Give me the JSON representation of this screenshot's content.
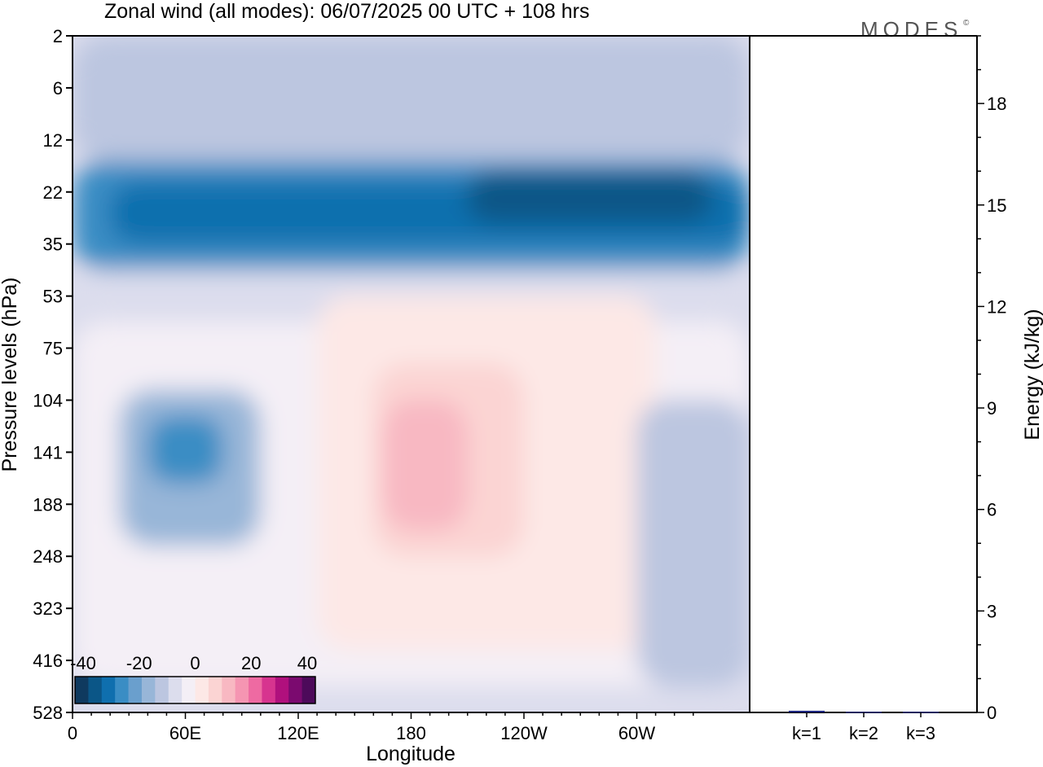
{
  "chart_data": [
    {
      "type": "heatmap",
      "title": "Zonal wind (all modes):  06/07/2025  00 UTC  + 108 hrs",
      "xlabel": "Longitude",
      "ylabel": "Pressure levels (hPa)",
      "x_ticks": [
        "0",
        "60E",
        "120E",
        "180",
        "120W",
        "60W"
      ],
      "y_ticks": [
        "2",
        "6",
        "12",
        "22",
        "35",
        "53",
        "75",
        "104",
        "141",
        "188",
        "248",
        "323",
        "416",
        "528"
      ],
      "colorbar": {
        "tick_labels": [
          "-40",
          "-20",
          "0",
          "20",
          "40"
        ],
        "range": [
          -45,
          45
        ],
        "step": 5,
        "colors": [
          "#0f3a5f",
          "#0b5687",
          "#0f6fae",
          "#3a8dc4",
          "#6a9fcd",
          "#98b6d8",
          "#bcc6e0",
          "#dcdded",
          "#f4eff6",
          "#fde8e6",
          "#fbd4d3",
          "#f8b8c2",
          "#f595b2",
          "#ee6aa2",
          "#d7348f",
          "#b0107d",
          "#7b0a6f",
          "#4d0a5a"
        ]
      },
      "regions": [
        {
          "lon": [
            0,
            360
          ],
          "lev": [
            0,
            2.4
          ],
          "value": -12
        },
        {
          "lon": [
            0,
            360
          ],
          "lev": [
            2.4,
            4.5
          ],
          "value": -28
        },
        {
          "lon": [
            20,
            360
          ],
          "lev": [
            2.8,
            4.0
          ],
          "value": -33
        },
        {
          "lon": [
            210,
            340
          ],
          "lev": [
            2.6,
            3.6
          ],
          "value": -37
        },
        {
          "lon": [
            0,
            360
          ],
          "lev": [
            4.5,
            5.5
          ],
          "value": -8
        },
        {
          "lon": [
            0,
            360
          ],
          "lev": [
            5.5,
            12.5
          ],
          "value": -4
        },
        {
          "lon": [
            25,
            100
          ],
          "lev": [
            6.8,
            9.8
          ],
          "value": -18
        },
        {
          "lon": [
            40,
            80
          ],
          "lev": [
            7.3,
            8.6
          ],
          "value": -27
        },
        {
          "lon": [
            130,
            310
          ],
          "lev": [
            5.0,
            11.8
          ],
          "value": 2
        },
        {
          "lon": [
            160,
            240
          ],
          "lev": [
            6.3,
            10.0
          ],
          "value": 6
        },
        {
          "lon": [
            165,
            210
          ],
          "lev": [
            7.0,
            9.5
          ],
          "value": 10
        },
        {
          "lon": [
            180,
            200
          ],
          "lev": [
            7.6,
            9.0
          ],
          "value": 14
        },
        {
          "lon": [
            300,
            360
          ],
          "lev": [
            7.0,
            12.5
          ],
          "value": -12
        }
      ]
    },
    {
      "type": "bar",
      "ylabel": "Energy (kJ/kg)",
      "categories": [
        "k=1",
        "k=2",
        "k=3"
      ],
      "values": [
        0.05,
        0.02,
        0.02
      ],
      "ylim": [
        0,
        20
      ],
      "y_ticks": [
        "0",
        "3",
        "6",
        "9",
        "12",
        "15",
        "18"
      ],
      "bar_color": "#1a237e"
    }
  ],
  "logo": {
    "text": "MODES",
    "mark": "©"
  }
}
